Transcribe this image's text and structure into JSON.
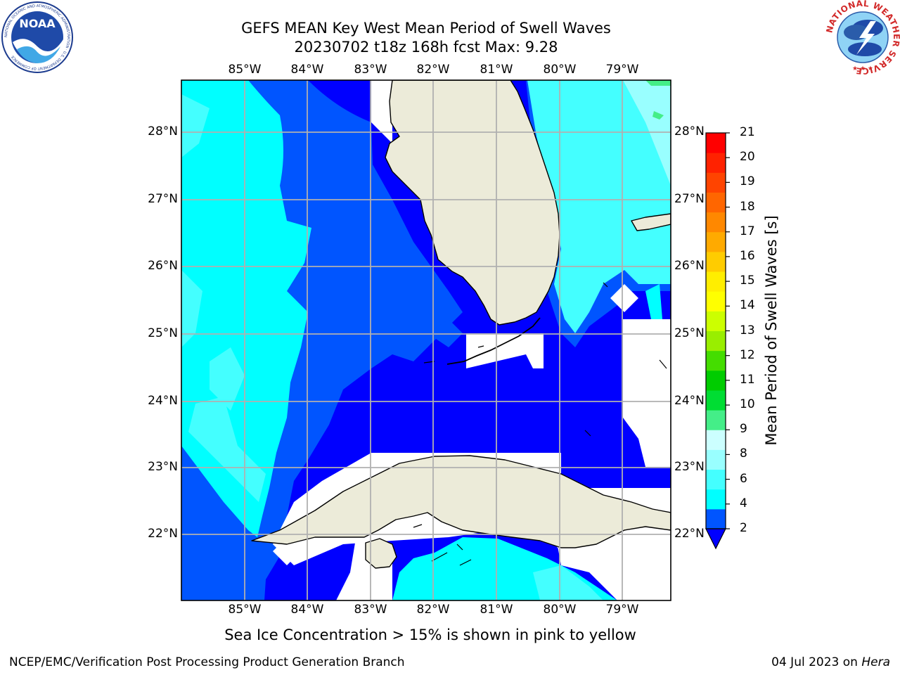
{
  "header": {
    "title_line1": "GEFS MEAN Key West Mean Period of Swell Waves",
    "title_line2": "20230702 t18z 168h fcst   Max: 9.28"
  },
  "logos": {
    "left": "NOAA",
    "left_ring": "NATIONAL OCEANIC AND ATMOSPHERIC ADMINISTRATION · U.S. DEPARTMENT OF COMMERCE",
    "right_ring": "NATIONAL WEATHER SERVICE"
  },
  "map": {
    "lon_labels": [
      "85°W",
      "84°W",
      "83°W",
      "82°W",
      "81°W",
      "80°W",
      "79°W"
    ],
    "lat_labels": [
      "28°N",
      "27°N",
      "26°N",
      "25°N",
      "24°N",
      "23°N",
      "22°N"
    ],
    "colors": {
      "land": "#ecebd9",
      "no_data": "#ffffff",
      "grid": "#b0b0b0"
    },
    "period_fill_seconds": {
      "west_gulf": 5,
      "mid_gulf": 3,
      "eastern_gulf_and_straits": 2,
      "atlantic_east_of_florida": 5,
      "north_atlantic_corner": 7,
      "caribbean_south_of_cuba": 5
    }
  },
  "colorbar": {
    "label": "Mean Period of Swell Waves [s]",
    "ticks": [
      "21",
      "20",
      "19",
      "18",
      "17",
      "16",
      "15",
      "14",
      "13",
      "12",
      "11",
      "10",
      "9",
      "8",
      "6",
      "4",
      "2"
    ],
    "colors_bottom_to_top": [
      "#0055ff",
      "#00ffff",
      "#44ffff",
      "#99ffff",
      "#ccffff",
      "#44ee88",
      "#00dd33",
      "#00cc00",
      "#44dd00",
      "#99ee00",
      "#ccff00",
      "#ffff00",
      "#ffee00",
      "#ffcc00",
      "#ffaa00",
      "#ff8800",
      "#ff6600",
      "#ff4400",
      "#ff2200",
      "#ff0000"
    ]
  },
  "footer": {
    "note": "Sea Ice Concentration > 15% is shown in pink to yellow",
    "left": "NCEP/EMC/Verification Post Processing Product Generation Branch",
    "right_prefix": "04 Jul 2023 on ",
    "right_host": "Hera"
  }
}
